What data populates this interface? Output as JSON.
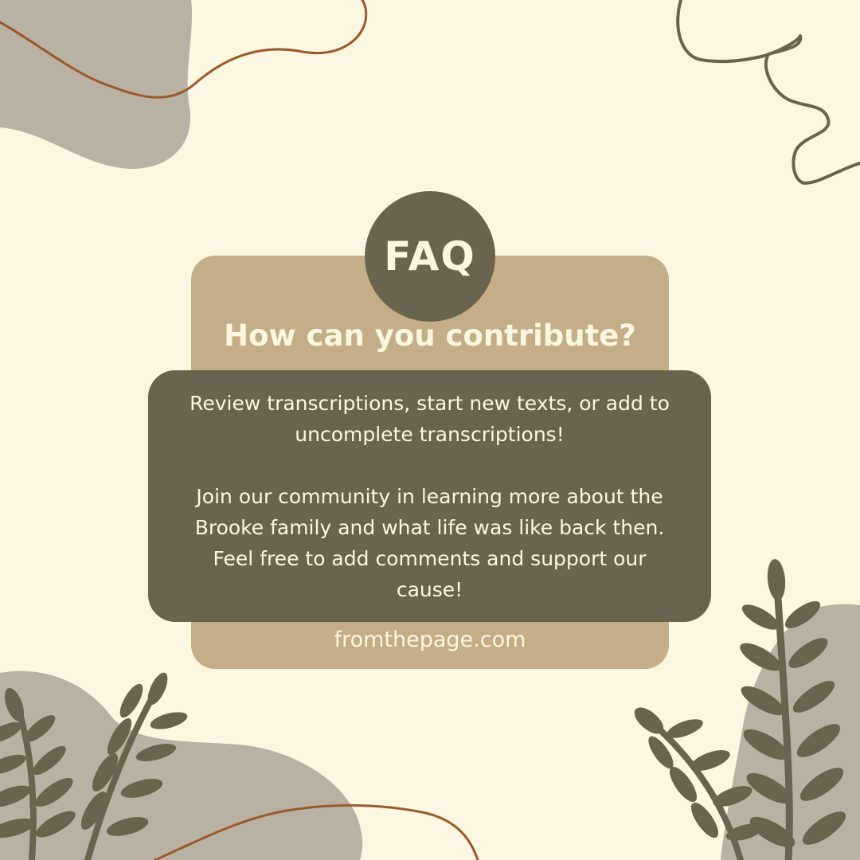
{
  "badge": {
    "label": "FAQ"
  },
  "question": {
    "text": "How can you contribute?"
  },
  "answer": {
    "paragraph_1": "Review transcriptions, start new texts, or add to uncomplete transcriptions!",
    "paragraph_2": "Join our community in learning more about the Brooke family and what life was like back then. Feel free to add comments and support our cause!"
  },
  "footer": {
    "website": "fromthepage.com"
  },
  "colors": {
    "background": "#fdf7e1",
    "tan": "#c4ae88",
    "dark_olive": "#6a644e",
    "gray_blob": "#b9b2a4",
    "rust_line": "#9a5a2c",
    "leaf": "#6a644e",
    "text_light": "#fdf7e1"
  },
  "decorations": {
    "top_left_blob": "gray-abstract-blob",
    "top_right_squiggle": "squiggle-line-icon",
    "bottom_left_plant": "fern-leaf-icon",
    "bottom_right_plant": "fern-leaf-icon"
  }
}
